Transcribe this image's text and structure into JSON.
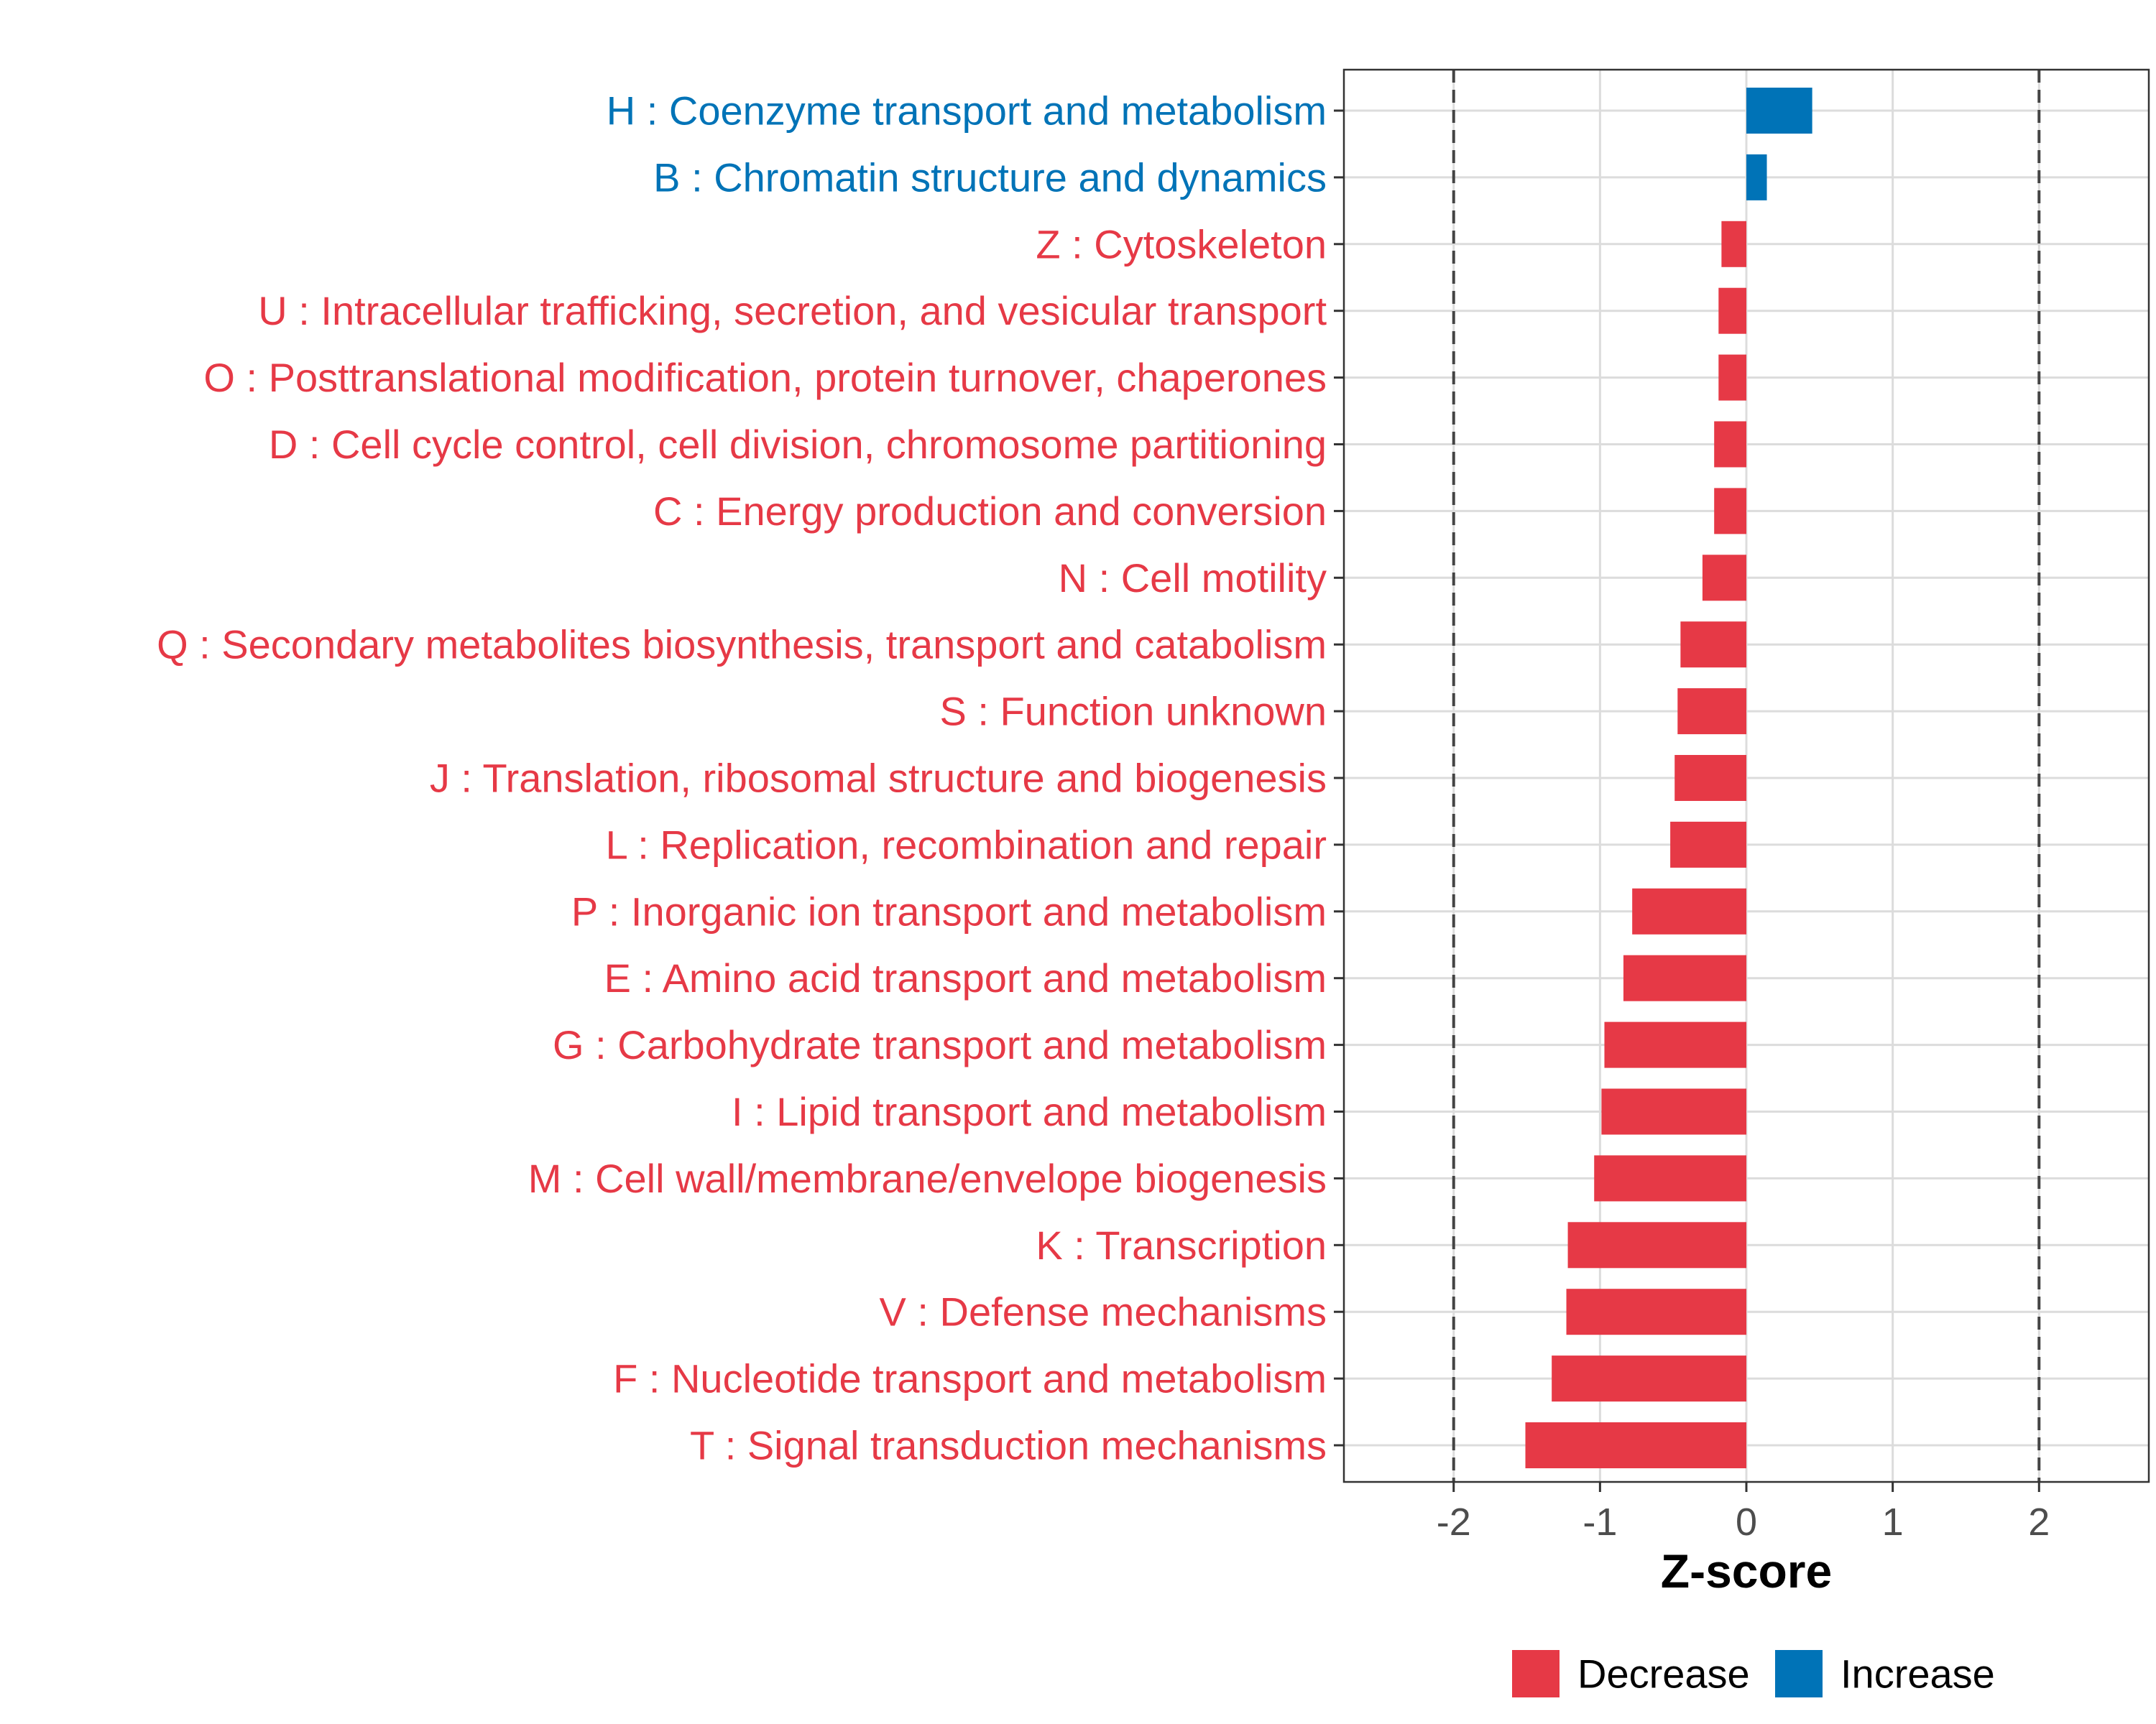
{
  "chart_data": {
    "type": "bar",
    "orientation": "horizontal",
    "title": "",
    "xlabel": "Z-score",
    "ylabel": "",
    "xlim": [
      -2.75,
      2.75
    ],
    "xticks": [
      -2,
      -1,
      0,
      1,
      2
    ],
    "xtick_labels": [
      "-2",
      "-1",
      "0",
      "1",
      "2"
    ],
    "reference_lines": [
      -2,
      2
    ],
    "grid": true,
    "legend_position": "bottom",
    "colors": {
      "Decrease": "#e63946",
      "Increase": "#0073b7"
    },
    "categories": [
      "H : Coenzyme transport and metabolism",
      "B : Chromatin structure and dynamics",
      "Z : Cytoskeleton",
      "U : Intracellular trafficking, secretion, and vesicular transport",
      "O : Posttranslational modification, protein turnover, chaperones",
      "D : Cell cycle control, cell division, chromosome partitioning",
      "C : Energy production and conversion",
      "N : Cell motility",
      "Q : Secondary metabolites biosynthesis, transport and catabolism",
      "S : Function unknown",
      "J : Translation, ribosomal structure and biogenesis",
      "L : Replication, recombination and repair",
      "P : Inorganic ion transport and metabolism",
      "E : Amino acid transport and metabolism",
      "G : Carbohydrate transport and metabolism",
      "I : Lipid transport and metabolism",
      "M : Cell wall/membrane/envelope biogenesis",
      "K : Transcription",
      "V : Defense mechanisms",
      "F : Nucleotide transport and metabolism",
      "T : Signal transduction mechanisms"
    ],
    "values": [
      0.45,
      0.14,
      -0.17,
      -0.19,
      -0.19,
      -0.22,
      -0.22,
      -0.3,
      -0.45,
      -0.47,
      -0.49,
      -0.52,
      -0.78,
      -0.84,
      -0.97,
      -0.99,
      -1.04,
      -1.22,
      -1.23,
      -1.33,
      -1.51
    ],
    "groups": [
      "Increase",
      "Increase",
      "Decrease",
      "Decrease",
      "Decrease",
      "Decrease",
      "Decrease",
      "Decrease",
      "Decrease",
      "Decrease",
      "Decrease",
      "Decrease",
      "Decrease",
      "Decrease",
      "Decrease",
      "Decrease",
      "Decrease",
      "Decrease",
      "Decrease",
      "Decrease",
      "Decrease"
    ],
    "legend": [
      {
        "label": "Decrease",
        "color": "#e63946"
      },
      {
        "label": "Increase",
        "color": "#0073b7"
      }
    ]
  }
}
